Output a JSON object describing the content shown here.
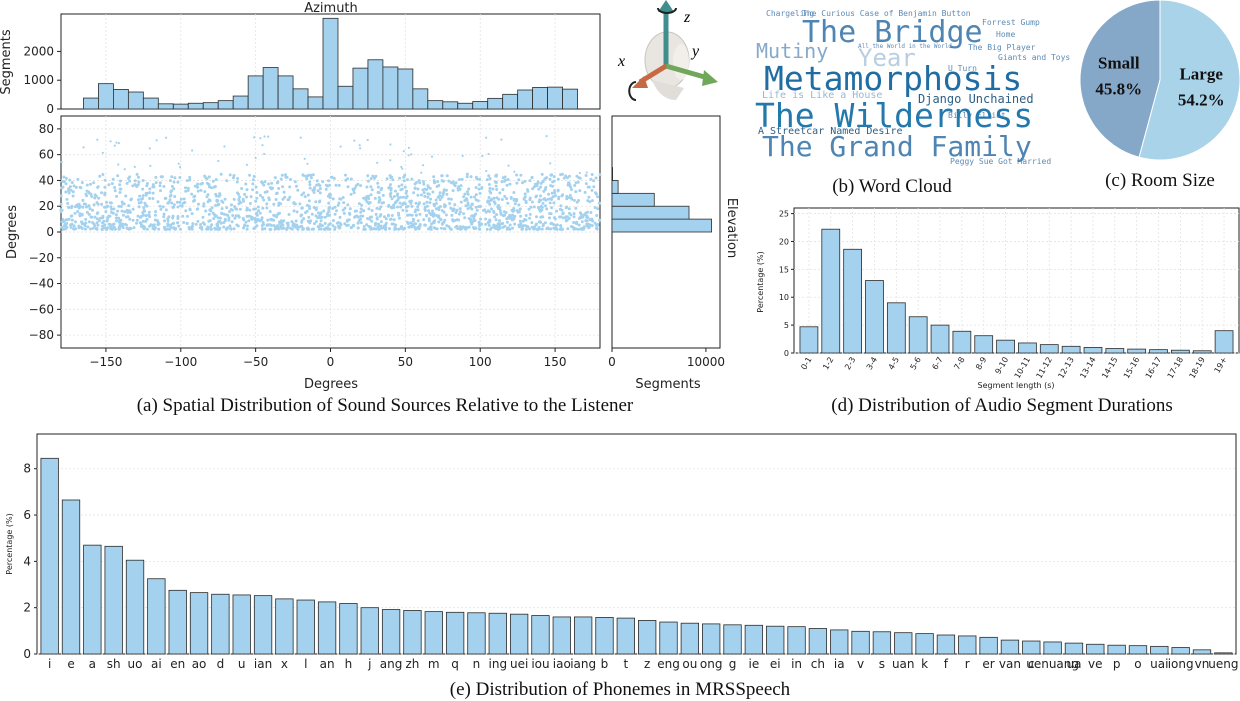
{
  "captions": {
    "a": "(a) Spatial Distribution of Sound Sources Relative to the Listener",
    "b": "(b) Word Cloud",
    "c": "(c)  Room Size",
    "d": "(d) Distribution of Audio Segment Durations",
    "e": "(e) Distribution of Phonemes in MRSSpeech"
  },
  "head_axes": {
    "x": "x",
    "y": "y",
    "z": "z"
  },
  "word_cloud": {
    "big": [
      "The Bridge",
      "Metamorphosis",
      "The Wilderness",
      "The Grand Family"
    ],
    "medium": [
      "Mutiny",
      "Year",
      "Django Unchained",
      "Life is Like a House",
      "A Streetcar Named Desire"
    ],
    "small": [
      "The Curious Case of Benjamin Button",
      "Forrest Gump",
      "The Big Player",
      "Chargeling",
      "U Turn",
      "Home",
      "Peggy Sue Got Married",
      "Giants and Toys",
      "All the World in the World",
      "Billy Elliot"
    ]
  },
  "chart_data": [
    {
      "id": "azimuth_hist",
      "type": "bar",
      "title": "Azimuth",
      "ylabel": "Segments",
      "xlim": [
        -180,
        180
      ],
      "ylim": [
        0,
        3300
      ],
      "yticks": [
        0,
        1000,
        2000
      ],
      "ytick_labels": [
        "0",
        "1000",
        "2000"
      ],
      "bin_width": 10,
      "bin_starts": [
        -165,
        -155,
        -145,
        -135,
        -125,
        -115,
        -105,
        -95,
        -85,
        -75,
        -65,
        -55,
        -45,
        -35,
        -25,
        -15,
        -5,
        5,
        15,
        25,
        35,
        45,
        55,
        65,
        75,
        85,
        95,
        105,
        115,
        125,
        135,
        145,
        155
      ],
      "values": [
        380,
        880,
        680,
        590,
        380,
        180,
        170,
        200,
        220,
        290,
        450,
        1150,
        1440,
        1150,
        700,
        420,
        3150,
        790,
        1420,
        1710,
        1460,
        1390,
        700,
        290,
        250,
        200,
        260,
        370,
        510,
        660,
        750,
        760,
        690
      ]
    },
    {
      "id": "elevation_scatter",
      "type": "scatter",
      "xlabel": "Degrees",
      "ylabel": "Degrees",
      "xlim": [
        -180,
        180
      ],
      "ylim": [
        -90,
        90
      ],
      "xticks": [
        -150,
        -100,
        -50,
        0,
        50,
        100,
        150
      ],
      "xtick_labels": [
        "−150",
        "−100",
        "−50",
        "0",
        "50",
        "100",
        "150"
      ],
      "yticks": [
        80,
        60,
        40,
        20,
        0,
        -20,
        -40,
        -60,
        -80
      ],
      "ytick_labels": [
        "80",
        "60",
        "40",
        "20",
        "0",
        "−20",
        "−40",
        "−60",
        "−80"
      ],
      "grid": true,
      "color": "#a4d2ee",
      "band_elevation_deg": [
        2,
        45
      ]
    },
    {
      "id": "elevation_hist",
      "type": "bar",
      "orientation": "horizontal",
      "title": "Elevation",
      "xlabel": "Segments",
      "xlim": [
        0,
        11500
      ],
      "xticks": [
        0,
        10000
      ],
      "xtick_labels": [
        "0",
        "10000"
      ],
      "bins": [
        [
          0,
          10
        ],
        [
          10,
          20
        ],
        [
          20,
          30
        ],
        [
          30,
          40
        ],
        [
          40,
          50
        ]
      ],
      "values": [
        10600,
        8200,
        4500,
        650,
        60
      ]
    },
    {
      "id": "room_size",
      "type": "pie",
      "categories": [
        "Small",
        "Large"
      ],
      "value_labels": [
        "45.8%",
        "54.2%"
      ],
      "values": [
        45.8,
        54.2
      ],
      "colors": [
        "#86a8c8",
        "#a9d3e8"
      ]
    },
    {
      "id": "segment_durations",
      "type": "bar",
      "xlabel": "Segment length (s)",
      "ylabel": "Percentage (%)",
      "ylim": [
        0,
        26
      ],
      "yticks": [
        0,
        5,
        10,
        15,
        20,
        25
      ],
      "categories": [
        "0-1",
        "1-2",
        "2-3",
        "3-4",
        "4-5",
        "5-6",
        "6-7",
        "7-8",
        "8-9",
        "9-10",
        "10-11",
        "11-12",
        "12-13",
        "13-14",
        "14-15",
        "15-16",
        "16-17",
        "17-18",
        "18-19",
        "19+"
      ],
      "values": [
        4.7,
        22.2,
        18.6,
        13.0,
        9.0,
        6.5,
        5.0,
        3.9,
        3.1,
        2.3,
        1.8,
        1.5,
        1.2,
        1.0,
        0.8,
        0.7,
        0.6,
        0.5,
        0.4,
        4.0
      ],
      "grid": true
    },
    {
      "id": "phonemes",
      "type": "bar",
      "ylabel": "Percentage (%)",
      "ylim": [
        0,
        9.5
      ],
      "yticks": [
        0,
        2,
        4,
        6,
        8
      ],
      "categories": [
        "i",
        "e",
        "a",
        "sh",
        "uo",
        "ai",
        "en",
        "ao",
        "d",
        "u",
        "ian",
        "x",
        "l",
        "an",
        "h",
        "j",
        "ang",
        "zh",
        "m",
        "q",
        "n",
        "ing",
        "uei",
        "iou",
        "iao",
        "iang",
        "b",
        "t",
        "z",
        "eng",
        "ou",
        "ong",
        "g",
        "ie",
        "ei",
        "in",
        "ch",
        "ia",
        "v",
        "s",
        "uan",
        "k",
        "f",
        "r",
        "er",
        "van",
        "c",
        "uenuang",
        "ua",
        "ve",
        "p",
        "o",
        "uai",
        "iong",
        "vn",
        "ueng"
      ],
      "values": [
        8.45,
        6.65,
        4.7,
        4.65,
        4.05,
        3.25,
        2.75,
        2.65,
        2.58,
        2.55,
        2.52,
        2.38,
        2.33,
        2.25,
        2.18,
        2.0,
        1.92,
        1.88,
        1.83,
        1.8,
        1.78,
        1.76,
        1.72,
        1.66,
        1.6,
        1.6,
        1.58,
        1.55,
        1.45,
        1.38,
        1.33,
        1.3,
        1.26,
        1.24,
        1.2,
        1.18,
        1.1,
        1.04,
        0.98,
        0.96,
        0.92,
        0.88,
        0.82,
        0.78,
        0.72,
        0.6,
        0.56,
        0.52,
        0.47,
        0.42,
        0.38,
        0.36,
        0.33,
        0.28,
        0.18,
        0.05
      ],
      "grid": true
    }
  ]
}
